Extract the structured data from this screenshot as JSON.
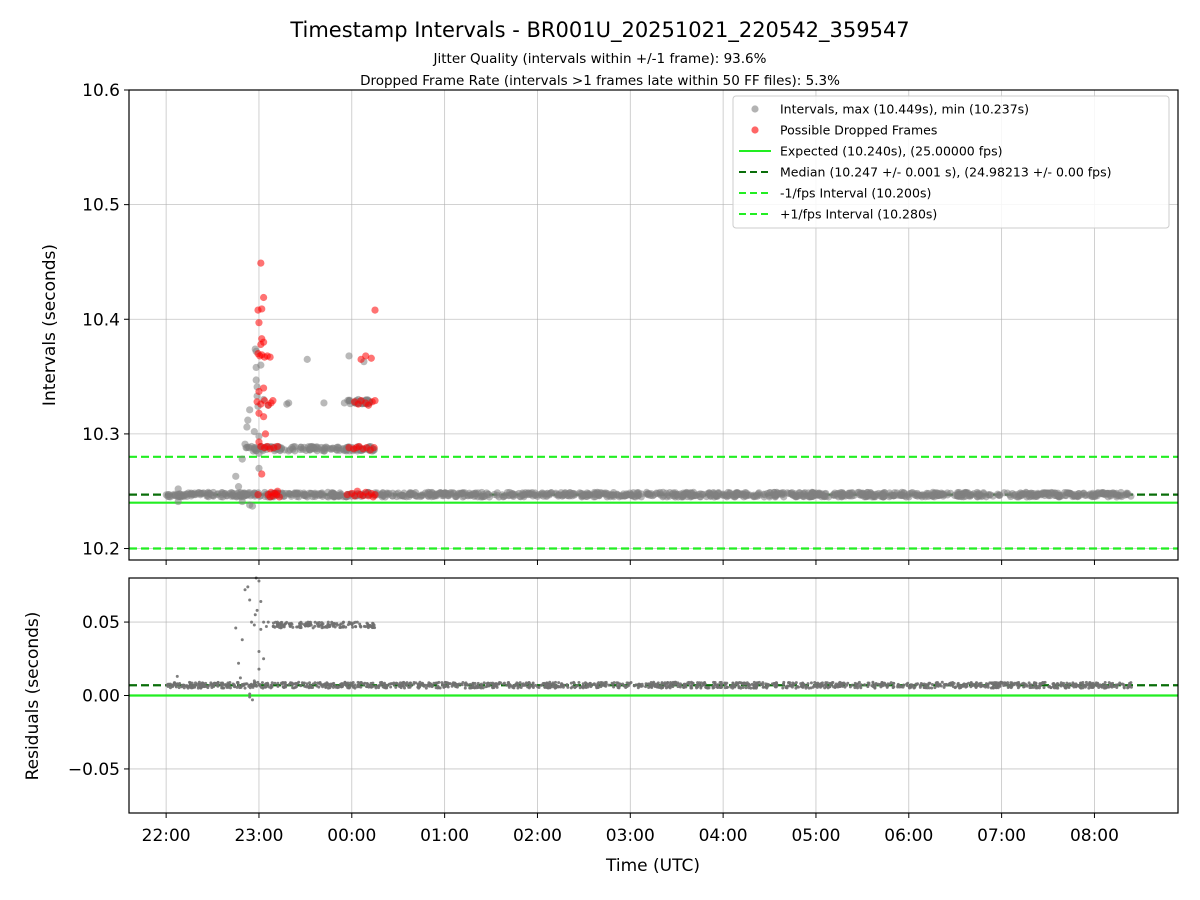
{
  "chart_data": {
    "title": "Timestamp Intervals - BR001U_20251021_220542_359547",
    "subtitle_lines": [
      "Jitter Quality (intervals within +/-1 frame): 93.6%",
      "Dropped Frame Rate (intervals >1 frames late within 50 FF files): 5.3%"
    ],
    "xlabel": "Time (UTC)",
    "x_ticks": [
      "22:00",
      "23:00",
      "00:00",
      "01:00",
      "02:00",
      "03:00",
      "04:00",
      "05:00",
      "06:00",
      "07:00",
      "08:00"
    ],
    "x_range_hours": [
      21.6,
      32.9
    ],
    "panels": [
      {
        "type": "scatter",
        "ylabel": "Intervals (seconds)",
        "ylim": [
          10.19,
          10.6
        ],
        "y_ticks": [
          "10.2",
          "10.3",
          "10.4",
          "10.5",
          "10.6"
        ],
        "grid": true,
        "legend_position": "top-right",
        "legend": [
          "Intervals, max (10.449s), min (10.237s)",
          "Possible Dropped Frames",
          "Expected (10.240s), (25.00000 fps)",
          "Median (10.247 +/- 0.001 s), (24.98213 +/- 0.00 fps)",
          "-1/fps Interval (10.200s)",
          "+1/fps Interval (10.280s)"
        ],
        "reference_lines": [
          {
            "value": 10.24,
            "style": "solid",
            "color": "#22ee22"
          },
          {
            "value": 10.247,
            "style": "dashed",
            "color": "#0a6e0a"
          },
          {
            "value": 10.2,
            "style": "dashed",
            "color": "#22ee22"
          },
          {
            "value": 10.28,
            "style": "dashed",
            "color": "#22ee22"
          }
        ],
        "series": [
          {
            "color": "#808080",
            "bands": [
              {
                "x": [
                  22.0,
                  32.4
                ],
                "y": 10.247,
                "spread": 0.002,
                "n": 1100
              },
              {
                "x": [
                  22.85,
                  24.25
                ],
                "y": 10.287,
                "spread": 0.002,
                "n": 130
              },
              {
                "x": [
                  23.95,
                  24.2
                ],
                "y": 10.328,
                "spread": 0.002,
                "n": 40
              }
            ],
            "points": [
              [
                22.13,
                10.252
              ],
              [
                22.13,
                10.241
              ],
              [
                22.75,
                10.263
              ],
              [
                22.78,
                10.254
              ],
              [
                22.82,
                10.278
              ],
              [
                22.82,
                10.241
              ],
              [
                22.85,
                10.291
              ],
              [
                22.87,
                10.306
              ],
              [
                22.88,
                10.312
              ],
              [
                22.9,
                10.321
              ],
              [
                22.9,
                10.238
              ],
              [
                22.92,
                10.289
              ],
              [
                22.93,
                10.237
              ],
              [
                22.95,
                10.302
              ],
              [
                22.96,
                10.374
              ],
              [
                22.97,
                10.372
              ],
              [
                22.97,
                10.358
              ],
              [
                22.97,
                10.347
              ],
              [
                22.98,
                10.341
              ],
              [
                22.98,
                10.333
              ],
              [
                22.99,
                10.324
              ],
              [
                23.0,
                10.298
              ],
              [
                23.0,
                10.27
              ],
              [
                23.0,
                10.283
              ],
              [
                23.02,
                10.36
              ],
              [
                23.05,
                10.33
              ],
              [
                23.1,
                10.325
              ],
              [
                23.3,
                10.326
              ],
              [
                23.32,
                10.327
              ],
              [
                23.52,
                10.365
              ],
              [
                23.7,
                10.327
              ],
              [
                23.92,
                10.327
              ],
              [
                23.97,
                10.368
              ],
              [
                24.07,
                10.33
              ],
              [
                24.13,
                10.363
              ]
            ]
          },
          {
            "color": "#ff0000",
            "points": [
              [
                23.02,
                10.449
              ],
              [
                23.05,
                10.419
              ],
              [
                22.99,
                10.408
              ],
              [
                23.03,
                10.409
              ],
              [
                23.0,
                10.397
              ],
              [
                23.03,
                10.383
              ],
              [
                23.02,
                10.378
              ],
              [
                23.05,
                10.38
              ],
              [
                22.99,
                10.37
              ],
              [
                23.01,
                10.368
              ],
              [
                23.03,
                10.369
              ],
              [
                23.06,
                10.367
              ],
              [
                23.09,
                10.368
              ],
              [
                23.12,
                10.367
              ],
              [
                23.0,
                10.337
              ],
              [
                23.05,
                10.34
              ],
              [
                22.98,
                10.328
              ],
              [
                23.02,
                10.326
              ],
              [
                23.06,
                10.329
              ],
              [
                23.1,
                10.325
              ],
              [
                23.13,
                10.327
              ],
              [
                23.15,
                10.329
              ],
              [
                23.0,
                10.318
              ],
              [
                23.05,
                10.315
              ],
              [
                23.07,
                10.3
              ],
              [
                23.0,
                10.293
              ],
              [
                23.02,
                10.289
              ],
              [
                23.06,
                10.288
              ],
              [
                23.09,
                10.289
              ],
              [
                23.12,
                10.287
              ],
              [
                23.16,
                10.288
              ],
              [
                23.2,
                10.289
              ],
              [
                23.03,
                10.265
              ],
              [
                22.99,
                10.247
              ],
              [
                23.1,
                10.247
              ],
              [
                23.12,
                10.245
              ],
              [
                23.13,
                10.249
              ],
              [
                23.15,
                10.246
              ],
              [
                23.17,
                10.248
              ],
              [
                23.19,
                10.247
              ],
              [
                23.2,
                10.25
              ],
              [
                23.22,
                10.245
              ],
              [
                23.95,
                10.247
              ],
              [
                24.0,
                10.248
              ],
              [
                24.03,
                10.246
              ],
              [
                24.06,
                10.25
              ],
              [
                24.09,
                10.247
              ],
              [
                24.12,
                10.246
              ],
              [
                24.15,
                10.249
              ],
              [
                24.18,
                10.246
              ],
              [
                24.21,
                10.248
              ],
              [
                24.23,
                10.245
              ],
              [
                24.25,
                10.247
              ],
              [
                23.97,
                10.288
              ],
              [
                24.02,
                10.287
              ],
              [
                24.05,
                10.288
              ],
              [
                24.08,
                10.289
              ],
              [
                24.12,
                10.287
              ],
              [
                24.16,
                10.288
              ],
              [
                24.2,
                10.286
              ],
              [
                24.24,
                10.288
              ],
              [
                24.03,
                10.328
              ],
              [
                24.07,
                10.326
              ],
              [
                24.1,
                10.329
              ],
              [
                24.15,
                10.327
              ],
              [
                24.18,
                10.325
              ],
              [
                24.22,
                10.328
              ],
              [
                24.25,
                10.329
              ],
              [
                24.1,
                10.365
              ],
              [
                24.15,
                10.368
              ],
              [
                24.21,
                10.366
              ],
              [
                24.25,
                10.408
              ]
            ]
          }
        ]
      },
      {
        "type": "scatter",
        "ylabel": "Residuals (seconds)",
        "ylim": [
          -0.08,
          0.08
        ],
        "y_ticks": [
          "−0.05",
          "0.00",
          "0.05"
        ],
        "grid": true,
        "reference_lines": [
          {
            "value": 0.0,
            "style": "solid",
            "color": "#22ee22"
          },
          {
            "value": 0.007,
            "style": "dashed",
            "color": "#0a6e0a"
          }
        ],
        "series": [
          {
            "color": "#707070",
            "bands": [
              {
                "x": [
                  22.0,
                  32.4
                ],
                "y": 0.007,
                "spread": 0.002,
                "n": 1400
              },
              {
                "x": [
                  23.15,
                  24.25
                ],
                "y": 0.048,
                "spread": 0.002,
                "n": 150
              }
            ],
            "points": [
              [
                22.12,
                0.013
              ],
              [
                22.12,
                0.008
              ],
              [
                22.75,
                0.046
              ],
              [
                22.78,
                0.022
              ],
              [
                22.8,
                0.012
              ],
              [
                22.82,
                0.038
              ],
              [
                22.85,
                0.072
              ],
              [
                22.88,
                0.074
              ],
              [
                22.9,
                0.065
              ],
              [
                22.9,
                0.001
              ],
              [
                22.92,
                0.05
              ],
              [
                22.93,
                -0.003
              ],
              [
                22.95,
                0.048
              ],
              [
                22.96,
                0.055
              ],
              [
                22.97,
                0.08
              ],
              [
                22.98,
                0.058
              ],
              [
                23.0,
                0.078
              ],
              [
                23.0,
                0.03
              ],
              [
                23.0,
                0.018
              ],
              [
                23.02,
                0.045
              ],
              [
                23.02,
                0.064
              ],
              [
                23.05,
                0.05
              ],
              [
                23.05,
                0.025
              ],
              [
                23.08,
                0.047
              ],
              [
                23.1,
                0.05
              ],
              [
                22.95,
                0.01
              ],
              [
                22.85,
                0.005
              ],
              [
                22.9,
                -0.001
              ]
            ]
          }
        ]
      }
    ]
  }
}
